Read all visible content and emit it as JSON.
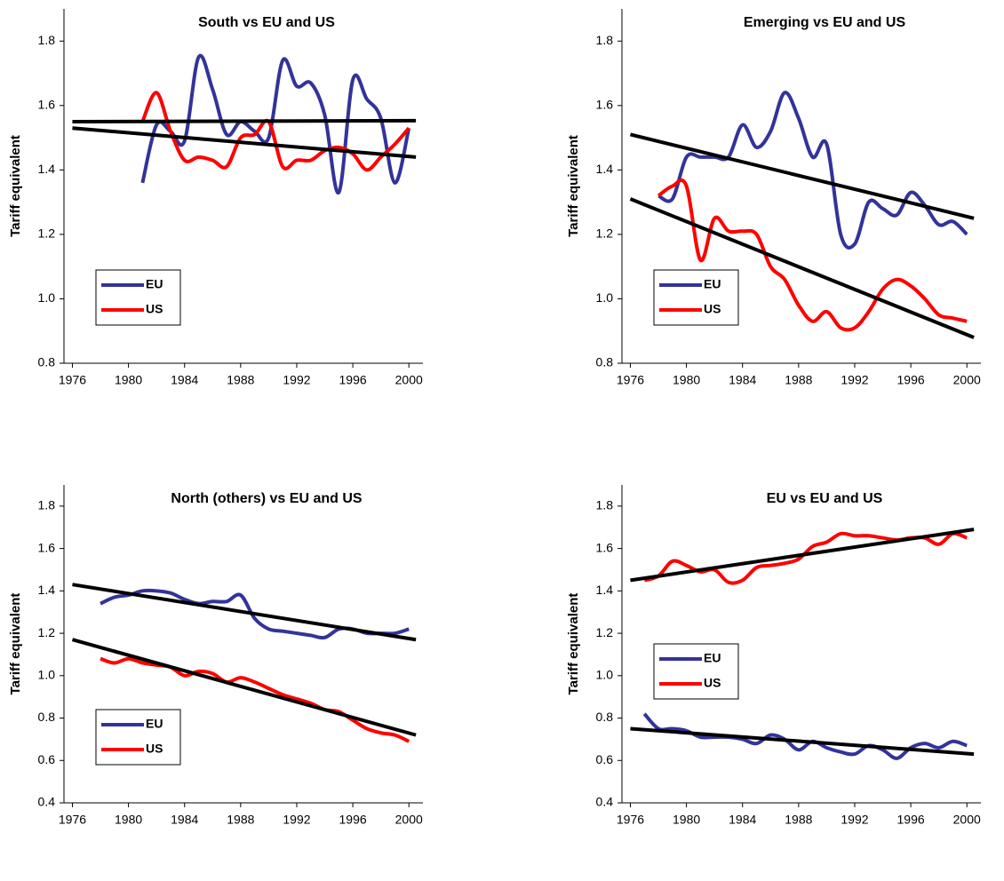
{
  "chart_data": [
    {
      "type": "line",
      "title": "South vs EU and US",
      "ylabel": "Tariff equivalent",
      "xlim": [
        1975.4,
        2001
      ],
      "ylim": [
        0.8,
        1.9
      ],
      "xticks": [
        1976,
        1980,
        1984,
        1988,
        1992,
        1996,
        2000
      ],
      "yticks": [
        0.8,
        {
          "value": 1,
          "label": "1.0"
        },
        1.2,
        1.4,
        1.6,
        1.8
      ],
      "legend": "lower left",
      "series": [
        {
          "name": "EU",
          "color": "#333399",
          "x": [
            1981,
            1982,
            1983,
            1984,
            1985,
            1986,
            1987,
            1988,
            1989,
            1990,
            1991,
            1992,
            1993,
            1994,
            1995,
            1996,
            1997,
            1998,
            1999,
            2000
          ],
          "values": [
            1.36,
            1.54,
            1.52,
            1.49,
            1.75,
            1.65,
            1.51,
            1.55,
            1.52,
            1.5,
            1.74,
            1.66,
            1.67,
            1.57,
            1.33,
            1.68,
            1.62,
            1.56,
            1.36,
            1.53
          ]
        },
        {
          "name": "US",
          "color": "#ff0000",
          "x": [
            1981,
            1982,
            1983,
            1984,
            1985,
            1986,
            1987,
            1988,
            1989,
            1990,
            1991,
            1992,
            1993,
            1994,
            1995,
            1996,
            1997,
            1998,
            1999,
            2000
          ],
          "values": [
            1.55,
            1.64,
            1.52,
            1.43,
            1.44,
            1.43,
            1.41,
            1.5,
            1.51,
            1.55,
            1.41,
            1.43,
            1.43,
            1.46,
            1.47,
            1.45,
            1.4,
            1.44,
            1.48,
            1.53
          ]
        },
        {
          "color": "#000000",
          "x": [
            1976,
            2000.5
          ],
          "values": [
            1.55,
            1.553
          ]
        },
        {
          "color": "#000000",
          "x": [
            1976,
            2000.5
          ],
          "values": [
            1.53,
            1.44
          ]
        }
      ]
    },
    {
      "type": "line",
      "title": "Emerging vs EU and US",
      "ylabel": "Tariff equivalent",
      "xlim": [
        1975.4,
        2001
      ],
      "ylim": [
        0.8,
        1.9
      ],
      "xticks": [
        1976,
        1980,
        1984,
        1988,
        1992,
        1996,
        2000
      ],
      "yticks": [
        0.8,
        {
          "value": 1,
          "label": "1.0"
        },
        1.2,
        1.4,
        1.6,
        1.8
      ],
      "legend": "lower left",
      "series": [
        {
          "name": "EU",
          "color": "#333399",
          "x": [
            1978,
            1979,
            1980,
            1981,
            1982,
            1983,
            1984,
            1985,
            1986,
            1987,
            1988,
            1989,
            1990,
            1991,
            1992,
            1993,
            1994,
            1995,
            1996,
            1997,
            1998,
            1999,
            2000
          ],
          "values": [
            1.32,
            1.31,
            1.44,
            1.44,
            1.44,
            1.44,
            1.54,
            1.47,
            1.52,
            1.64,
            1.56,
            1.44,
            1.48,
            1.2,
            1.17,
            1.3,
            1.28,
            1.26,
            1.33,
            1.29,
            1.23,
            1.24,
            1.2
          ]
        },
        {
          "name": "US",
          "color": "#ff0000",
          "x": [
            1978,
            1979,
            1980,
            1981,
            1982,
            1983,
            1984,
            1985,
            1986,
            1987,
            1988,
            1989,
            1990,
            1991,
            1992,
            1993,
            1994,
            1995,
            1996,
            1997,
            1998,
            1999,
            2000
          ],
          "values": [
            1.32,
            1.35,
            1.35,
            1.12,
            1.25,
            1.21,
            1.21,
            1.2,
            1.1,
            1.06,
            0.98,
            0.93,
            0.96,
            0.91,
            0.91,
            0.96,
            1.03,
            1.06,
            1.04,
            1,
            0.95,
            0.94,
            0.93
          ]
        },
        {
          "color": "#000000",
          "x": [
            1976,
            2000.5
          ],
          "values": [
            1.51,
            1.25
          ]
        },
        {
          "color": "#000000",
          "x": [
            1976,
            2000.5
          ],
          "values": [
            1.31,
            0.88
          ]
        }
      ]
    },
    {
      "type": "line",
      "title": "North (others) vs EU and US",
      "ylabel": "Tariff equivalent",
      "xlim": [
        1975.4,
        2001
      ],
      "ylim": [
        0.4,
        1.9
      ],
      "xticks": [
        1976,
        1980,
        1984,
        1988,
        1992,
        1996,
        2000
      ],
      "yticks": [
        0.4,
        0.6,
        0.8,
        {
          "value": 1,
          "label": "1.0"
        },
        1.2,
        1.4,
        1.6,
        1.8
      ],
      "legend": "lower left",
      "series": [
        {
          "name": "EU",
          "color": "#333399",
          "x": [
            1978,
            1979,
            1980,
            1981,
            1982,
            1983,
            1984,
            1985,
            1986,
            1987,
            1988,
            1989,
            1990,
            1991,
            1992,
            1993,
            1994,
            1995,
            1996,
            1997,
            1998,
            1999,
            2000
          ],
          "values": [
            1.34,
            1.37,
            1.38,
            1.4,
            1.4,
            1.39,
            1.36,
            1.34,
            1.35,
            1.35,
            1.38,
            1.27,
            1.22,
            1.21,
            1.2,
            1.19,
            1.18,
            1.22,
            1.22,
            1.2,
            1.2,
            1.2,
            1.22
          ]
        },
        {
          "name": "US",
          "color": "#ff0000",
          "x": [
            1978,
            1979,
            1980,
            1981,
            1982,
            1983,
            1984,
            1985,
            1986,
            1987,
            1988,
            1989,
            1990,
            1991,
            1992,
            1993,
            1994,
            1995,
            1996,
            1997,
            1998,
            1999,
            2000
          ],
          "values": [
            1.08,
            1.06,
            1.08,
            1.06,
            1.05,
            1.04,
            1,
            1.02,
            1.01,
            0.97,
            0.99,
            0.97,
            0.94,
            0.91,
            0.89,
            0.87,
            0.84,
            0.83,
            0.79,
            0.75,
            0.73,
            0.72,
            0.69
          ]
        },
        {
          "color": "#000000",
          "x": [
            1976,
            2000.5
          ],
          "values": [
            1.43,
            1.17
          ]
        },
        {
          "color": "#000000",
          "x": [
            1976,
            2000.5
          ],
          "values": [
            1.17,
            0.72
          ]
        }
      ]
    },
    {
      "type": "line",
      "title": "EU vs EU and US",
      "ylabel": "Tariff equivalent",
      "xlim": [
        1975.4,
        2001
      ],
      "ylim": [
        0.4,
        1.9
      ],
      "xticks": [
        1976,
        1980,
        1984,
        1988,
        1992,
        1996,
        2000
      ],
      "yticks": [
        0.4,
        0.6,
        0.8,
        {
          "value": 1,
          "label": "1.0"
        },
        1.2,
        1.4,
        1.6,
        1.8
      ],
      "legend": "center left",
      "series": [
        {
          "name": "EU",
          "color": "#333399",
          "x": [
            1977,
            1978,
            1979,
            1980,
            1981,
            1982,
            1983,
            1984,
            1985,
            1986,
            1987,
            1988,
            1989,
            1990,
            1991,
            1992,
            1993,
            1994,
            1995,
            1996,
            1997,
            1998,
            1999,
            2000
          ],
          "values": [
            0.82,
            0.75,
            0.75,
            0.74,
            0.71,
            0.71,
            0.71,
            0.7,
            0.68,
            0.72,
            0.7,
            0.65,
            0.69,
            0.66,
            0.64,
            0.63,
            0.67,
            0.65,
            0.61,
            0.66,
            0.68,
            0.66,
            0.69,
            0.67
          ]
        },
        {
          "name": "US",
          "color": "#ff0000",
          "x": [
            1977,
            1978,
            1979,
            1980,
            1981,
            1982,
            1983,
            1984,
            1985,
            1986,
            1987,
            1988,
            1989,
            1990,
            1991,
            1992,
            1993,
            1994,
            1995,
            1996,
            1997,
            1998,
            1999,
            2000
          ],
          "values": [
            1.45,
            1.47,
            1.54,
            1.52,
            1.49,
            1.5,
            1.44,
            1.45,
            1.51,
            1.52,
            1.53,
            1.55,
            1.61,
            1.63,
            1.67,
            1.66,
            1.66,
            1.65,
            1.64,
            1.65,
            1.65,
            1.62,
            1.67,
            1.65
          ]
        },
        {
          "color": "#000000",
          "x": [
            1976,
            2000.5
          ],
          "values": [
            1.45,
            1.69
          ]
        },
        {
          "color": "#000000",
          "x": [
            1976,
            2000.5
          ],
          "values": [
            0.75,
            0.63
          ]
        }
      ]
    }
  ]
}
